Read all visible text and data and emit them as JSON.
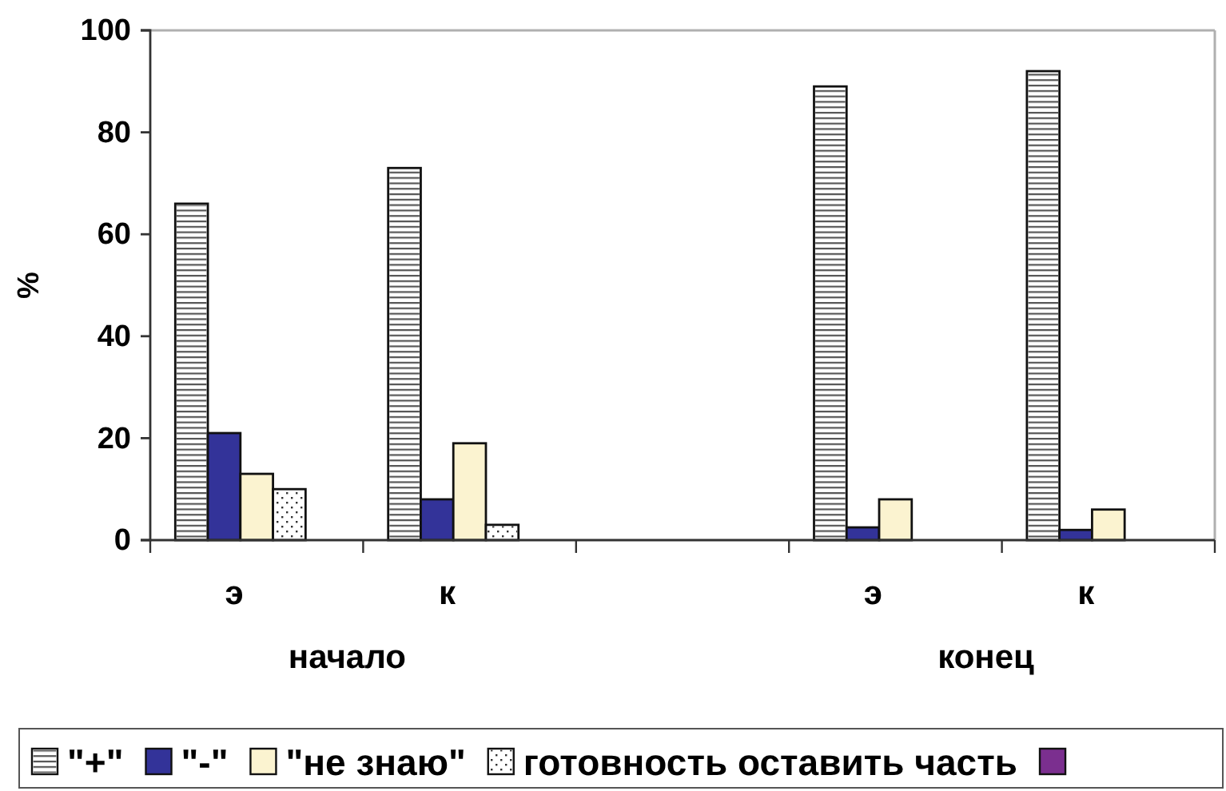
{
  "chart_data": {
    "type": "bar",
    "ylabel": "%",
    "categories": [
      "э",
      "к",
      null,
      "э",
      "к"
    ],
    "annotations": [
      "начало",
      "конец"
    ],
    "series": [
      {
        "name": "\"+\"",
        "color": "#ffffff",
        "values": [
          66,
          73,
          null,
          89,
          92
        ]
      },
      {
        "name": "\"-\"",
        "color": "#333399",
        "values": [
          21,
          8,
          null,
          2.5,
          2
        ]
      },
      {
        "name": "\"не знаю\"",
        "color": "#fbf3d0",
        "values": [
          13,
          19,
          null,
          8,
          6
        ]
      },
      {
        "name": "готовность оставить часть",
        "color": "#ffffff",
        "values": [
          10,
          3,
          null,
          null,
          null
        ]
      },
      {
        "color": "#7b2f8f",
        "values": [
          null,
          null,
          null,
          null,
          null
        ]
      }
    ],
    "ylim": [
      0,
      100
    ],
    "yticks": [
      0,
      20,
      40,
      60,
      80,
      100
    ],
    "legend": "bottom"
  }
}
